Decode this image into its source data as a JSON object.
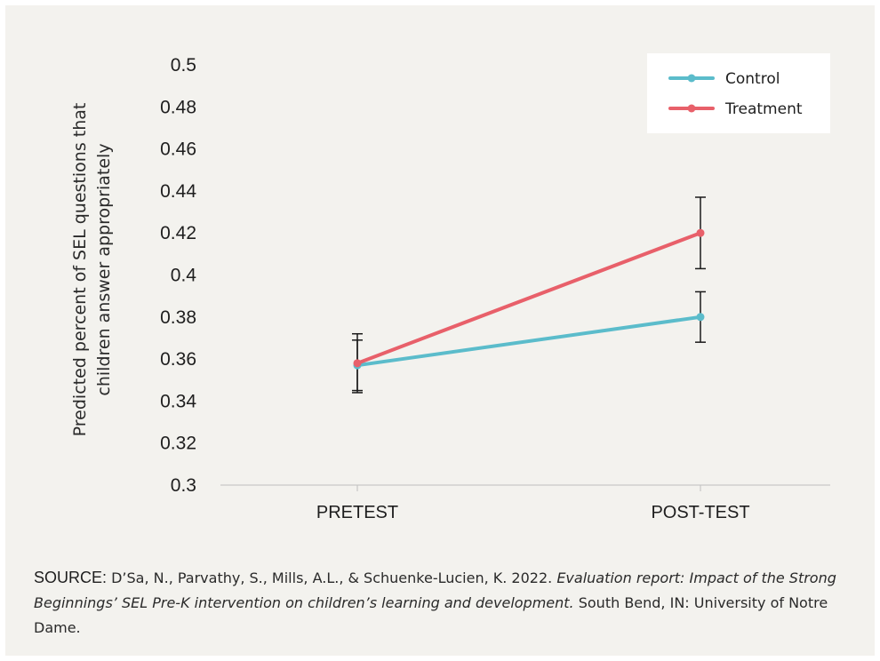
{
  "chart_data": {
    "type": "line",
    "categories": [
      "PRETEST",
      "POST-TEST"
    ],
    "series": [
      {
        "name": "Control",
        "color": "#5bbccb",
        "values": [
          0.357,
          0.38
        ],
        "error_low": [
          0.345,
          0.368
        ],
        "error_high": [
          0.369,
          0.392
        ]
      },
      {
        "name": "Treatment",
        "color": "#e8606a",
        "values": [
          0.358,
          0.42
        ],
        "error_low": [
          0.344,
          0.403
        ],
        "error_high": [
          0.372,
          0.437
        ]
      }
    ],
    "ylabel_lines": [
      "Predicted percent of SEL questions that",
      "children answer appropriately"
    ],
    "xlabel": "",
    "ylim": [
      0.3,
      0.5
    ],
    "yticks": [
      0.3,
      0.32,
      0.34,
      0.36,
      0.38,
      0.4,
      0.42,
      0.44,
      0.46,
      0.48,
      0.5
    ],
    "ytick_labels": [
      "0.3",
      "0.32",
      "0.34",
      "0.36",
      "0.38",
      "0.4",
      "0.42",
      "0.44",
      "0.46",
      "0.48",
      "0.5"
    ],
    "legend_position": "top-right",
    "grid": false
  },
  "source": {
    "label": "SOURCE:",
    "text_before": " D’Sa, N., Parvathy, S., Mills, A.L., & Schuenke-Lucien, K. 2022. ",
    "italic": "Evaluation report: Impact of the Strong Beginnings’ SEL Pre-K intervention on children’s learning and development.",
    "text_after": " South Bend, IN: University of Notre Dame."
  },
  "colors": {
    "background": "#f3f2ee",
    "axis": "#bfbfbf",
    "error_bar": "#1a1a1a"
  }
}
